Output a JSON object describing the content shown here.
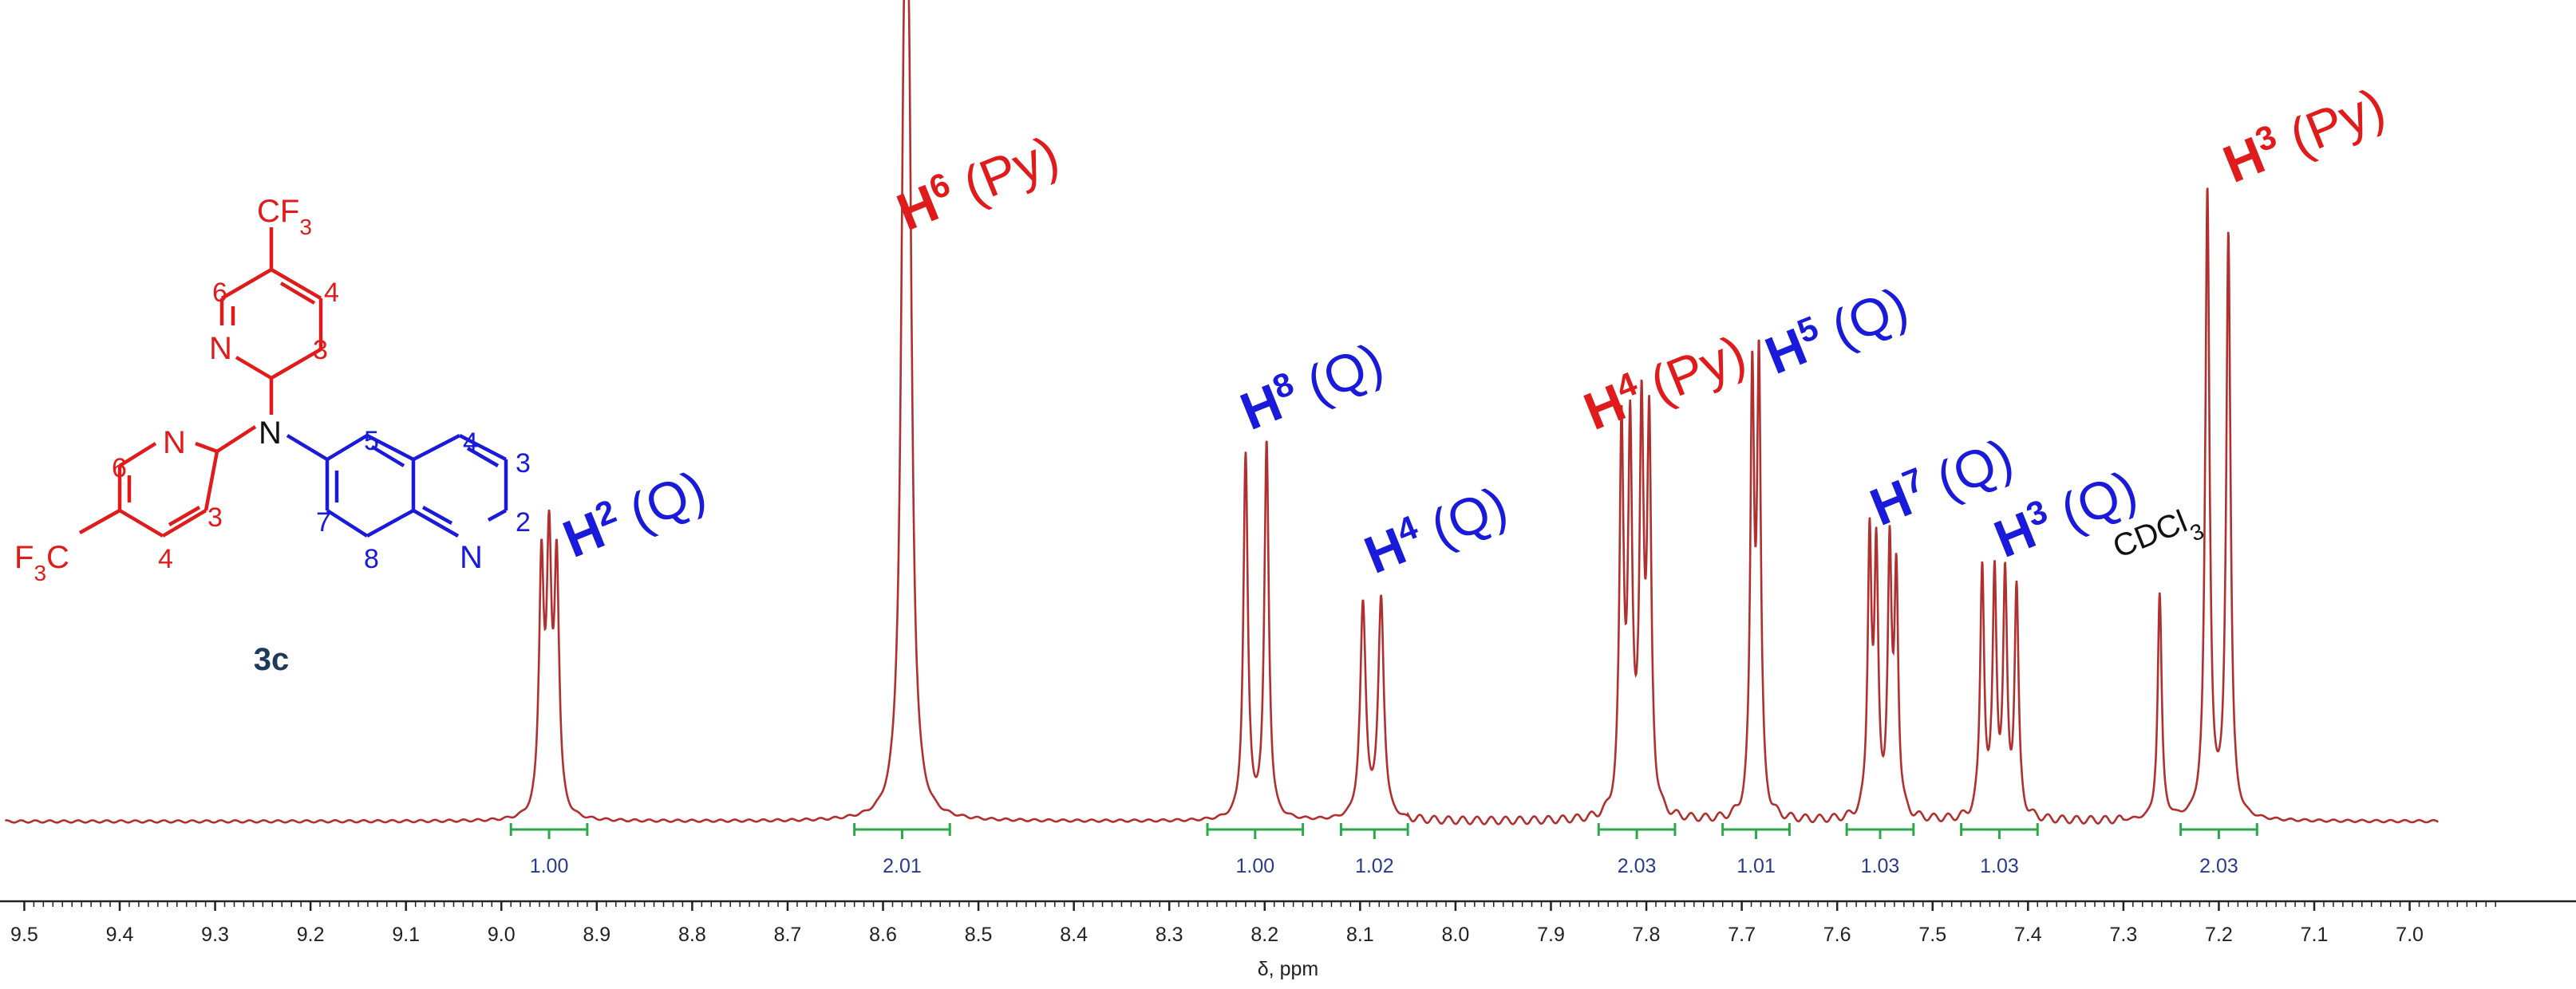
{
  "chart_data": {
    "type": "line",
    "xlabel": "δ, ppm",
    "xlim": [
      9.5,
      7.0
    ],
    "x_reversed": true,
    "ticks": [
      "9.5",
      "9.4",
      "9.3",
      "9.2",
      "9.1",
      "9.0",
      "8.9",
      "8.8",
      "8.7",
      "8.6",
      "8.5",
      "8.4",
      "8.3",
      "8.2",
      "8.1",
      "8.0",
      "7.9",
      "7.8",
      "7.7",
      "7.6",
      "7.5",
      "7.4",
      "7.3",
      "7.2",
      "7.1",
      "7.0"
    ],
    "peaks": [
      {
        "name": "H2-Q",
        "center": 8.95,
        "lines": [
          8.958,
          8.95,
          8.942
        ],
        "heights": [
          0.39,
          0.4,
          0.39
        ],
        "width": 0.003
      },
      {
        "name": "H6-Py",
        "center": 8.575,
        "lines": [
          8.578,
          8.573
        ],
        "heights": [
          0.95,
          0.95
        ],
        "width": 0.004
      },
      {
        "name": "H8-Q",
        "center": 8.21,
        "lines": [
          8.22,
          8.198
        ],
        "heights": [
          0.58,
          0.6
        ],
        "width": 0.0028
      },
      {
        "name": "H4-Q",
        "center": 8.09,
        "lines": [
          8.097,
          8.078
        ],
        "heights": [
          0.34,
          0.35
        ],
        "width": 0.0035
      },
      {
        "name": "H4-Py",
        "center": 7.81,
        "lines": [
          7.826,
          7.817,
          7.805,
          7.797
        ],
        "heights": [
          0.6,
          0.59,
          0.62,
          0.6
        ],
        "width": 0.0026
      },
      {
        "name": "H5-Q",
        "center": 7.685,
        "lines": [
          7.689,
          7.682
        ],
        "heights": [
          0.68,
          0.7
        ],
        "width": 0.0024
      },
      {
        "name": "H7-Q",
        "center": 7.55,
        "lines": [
          7.566,
          7.559,
          7.545,
          7.538
        ],
        "heights": [
          0.44,
          0.4,
          0.41,
          0.38
        ],
        "width": 0.0024
      },
      {
        "name": "H3-Q",
        "center": 7.43,
        "lines": [
          7.448,
          7.435,
          7.424,
          7.412
        ],
        "heights": [
          0.4,
          0.38,
          0.37,
          0.36
        ],
        "width": 0.0025
      },
      {
        "name": "CDCl3",
        "center": 7.26,
        "lines": [
          7.262
        ],
        "heights": [
          0.36
        ],
        "width": 0.0025
      },
      {
        "name": "H3-Py",
        "center": 7.2,
        "lines": [
          7.212,
          7.19
        ],
        "heights": [
          1.0,
          0.93
        ],
        "width": 0.0027
      }
    ],
    "integrals": [
      {
        "from": 8.99,
        "to": 8.91,
        "value": "1.00"
      },
      {
        "from": 8.63,
        "to": 8.53,
        "value": "2.01"
      },
      {
        "from": 8.26,
        "to": 8.16,
        "value": "1.00"
      },
      {
        "from": 8.12,
        "to": 8.05,
        "value": "1.02"
      },
      {
        "from": 7.85,
        "to": 7.77,
        "value": "2.03"
      },
      {
        "from": 7.72,
        "to": 7.65,
        "value": "1.01"
      },
      {
        "from": 7.59,
        "to": 7.52,
        "value": "1.03"
      },
      {
        "from": 7.47,
        "to": 7.39,
        "value": "1.03"
      },
      {
        "from": 7.24,
        "to": 7.16,
        "value": "2.03"
      }
    ],
    "labels": [
      {
        "base": "H",
        "sup": "2",
        "suffix": " (Q)",
        "color": "#1a1adb",
        "ppm": 8.9
      },
      {
        "base": "H",
        "sup": "6",
        "suffix": " (Py)",
        "color": "#e01b1b",
        "ppm": 8.55
      },
      {
        "base": "H",
        "sup": "8",
        "suffix": " (Q)",
        "color": "#1a1adb",
        "ppm": 8.19
      },
      {
        "base": "H",
        "sup": "4",
        "suffix": " (Q)",
        "color": "#1a1adb",
        "ppm": 8.06
      },
      {
        "base": "H",
        "sup": "4",
        "suffix": " (Py)",
        "color": "#e01b1b",
        "ppm": 7.83
      },
      {
        "base": "H",
        "sup": "5",
        "suffix": " (Q)",
        "color": "#1a1adb",
        "ppm": 7.64
      },
      {
        "base": "H",
        "sup": "7",
        "suffix": " (Q)",
        "color": "#1a1adb",
        "ppm": 7.53
      },
      {
        "base": "H",
        "sup": "3",
        "suffix": " (Q)",
        "color": "#1a1adb",
        "ppm": 7.4
      },
      {
        "base": "CDCl",
        "sub": "3",
        "suffix": "",
        "color": "#111111",
        "ppm": 7.28
      },
      {
        "base": "H",
        "sup": "3",
        "suffix": " (Py)",
        "color": "#e01b1b",
        "ppm": 7.16
      }
    ]
  },
  "structure": {
    "compound": "3c",
    "cf3_top": "CF",
    "cf3_top_sub": "3",
    "cf3_left_pre": "F",
    "cf3_left_sub": "3",
    "cf3_left_post": "C",
    "n_label": "N"
  },
  "colors": {
    "spectrum": "#b03030",
    "integral": "#2aa84a",
    "py": "#e01b1b",
    "q": "#1a1adb",
    "compound": "#1e3a5a"
  }
}
